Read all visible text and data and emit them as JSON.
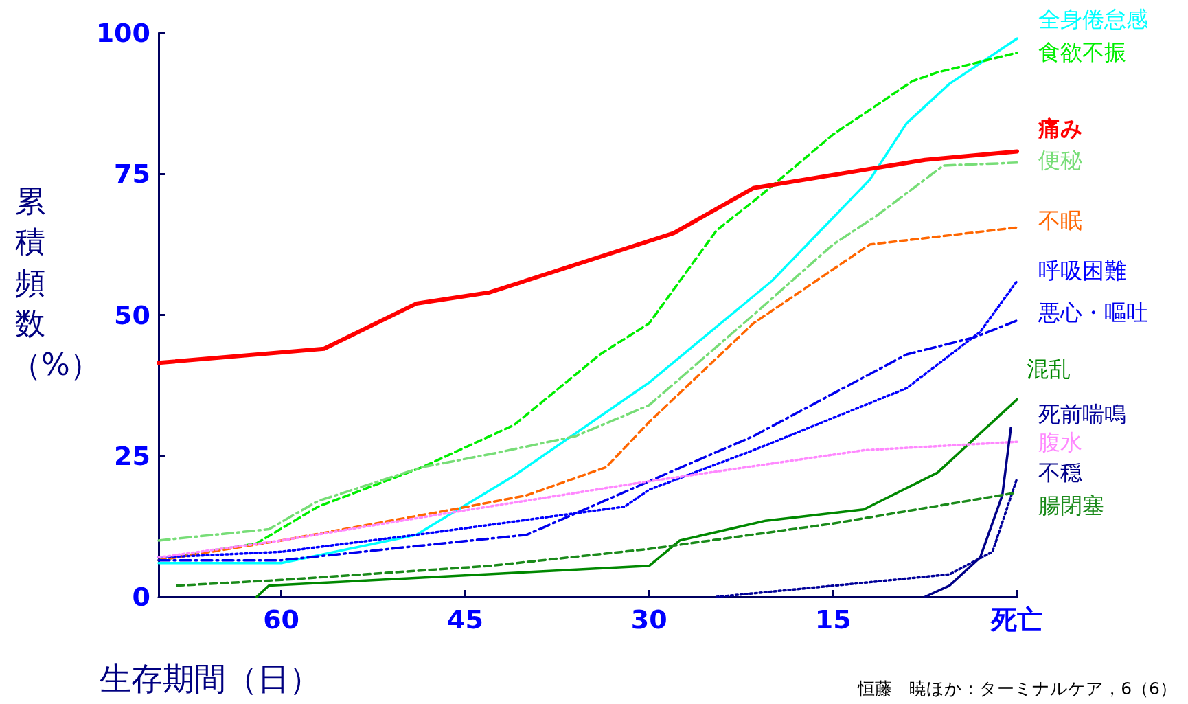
{
  "chart_data": {
    "type": "line",
    "xlabel": "生存期間（日）",
    "ylabel": "累積頻数（%）",
    "annotations": [
      "恒藤　暁ほか：ターミナルケア，6（6）"
    ],
    "xlim": [
      70,
      0
    ],
    "xticks": [
      {
        "value": 0,
        "label": "死亡"
      },
      15,
      30,
      45,
      60
    ],
    "ylim": [
      0,
      100
    ],
    "yticks": [
      0,
      25,
      50,
      75,
      100
    ],
    "grid": false,
    "legend": "right",
    "marker": "none",
    "series": [
      {
        "name": "全身倦怠感",
        "color": "#00ffff",
        "line_style": "solid",
        "x": [
          70,
          60,
          49,
          41,
          30,
          20,
          12,
          9,
          5.5,
          0
        ],
        "values": [
          6,
          6,
          11,
          21.5,
          38,
          56,
          74,
          84,
          91,
          99
        ]
      },
      {
        "name": "食欲不振",
        "color": "#00ee00",
        "line_style": "dashed",
        "x": [
          70,
          62,
          57,
          48.5,
          41,
          34,
          30,
          24.5,
          21,
          15,
          8.5,
          6.5,
          0
        ],
        "values": [
          6.5,
          9.5,
          16,
          23,
          30.5,
          43,
          48.5,
          65,
          71,
          82,
          91.5,
          93,
          96.5
        ]
      },
      {
        "name": "痛み",
        "color": "#ff0000",
        "line_style": "solid",
        "x": [
          70,
          56.5,
          49,
          43,
          28,
          21.5,
          7.5,
          0
        ],
        "values": [
          41.5,
          44,
          52,
          54,
          64.5,
          72.5,
          77.5,
          79
        ]
      },
      {
        "name": "便秘",
        "color": "#77dd77",
        "line_style": "dashdot",
        "x": [
          70,
          61,
          57,
          48.5,
          42.5,
          36,
          30,
          21.5,
          15,
          11.5,
          6,
          0
        ],
        "values": [
          10,
          12,
          17,
          23,
          25.5,
          28.5,
          34,
          50,
          62.5,
          67.5,
          76.5,
          77
        ]
      },
      {
        "name": "不眠",
        "color": "#ff6600",
        "line_style": "dashed",
        "x": [
          70,
          60,
          46,
          40,
          33.5,
          30,
          21.5,
          12,
          0
        ],
        "values": [
          6.5,
          10,
          15.5,
          18,
          23,
          31,
          48.5,
          62.5,
          65.5
        ]
      },
      {
        "name": "呼吸困難",
        "color": "#0000ff",
        "line_style": "dotted",
        "x": [
          70,
          60,
          49,
          32,
          30,
          21.5,
          9,
          3,
          0
        ],
        "values": [
          7,
          8,
          11,
          16,
          19,
          26,
          37,
          47,
          56
        ]
      },
      {
        "name": "悪心・嘔吐",
        "color": "#0000ee",
        "line_style": "dashdot",
        "x": [
          70,
          60,
          49,
          40,
          30,
          21.5,
          9,
          3.5,
          0
        ],
        "values": [
          6.5,
          6.5,
          9,
          11,
          20.5,
          28.5,
          43,
          46,
          49
        ]
      },
      {
        "name": "混乱",
        "color": "#008800",
        "line_style": "solid",
        "x": [
          62,
          61,
          30,
          27.5,
          20.5,
          12.5,
          6.5,
          0
        ],
        "values": [
          0,
          2,
          5.5,
          10,
          13.5,
          15.5,
          22,
          35
        ]
      },
      {
        "name": "死前喘鳴",
        "color": "#000099",
        "line_style": "dotted",
        "x": [
          24.5,
          12.5,
          5.5,
          2,
          0
        ],
        "values": [
          0,
          2.5,
          4,
          8,
          21
        ]
      },
      {
        "name": "腹水",
        "color": "#ff88ff",
        "line_style": "dotted",
        "x": [
          70,
          60,
          46,
          30,
          12.5,
          0
        ],
        "values": [
          7,
          10,
          15,
          20.5,
          26,
          27.5
        ]
      },
      {
        "name": "不穏",
        "color": "#000088",
        "line_style": "solid",
        "x": [
          7.5,
          5.5,
          3,
          1.2,
          0.5
        ],
        "values": [
          0,
          2,
          7,
          18,
          30
        ]
      },
      {
        "name": "腸閉塞",
        "color": "#1a8a1a",
        "line_style": "dashed",
        "x": [
          68.5,
          60,
          43,
          30,
          15,
          0
        ],
        "values": [
          2,
          3,
          5.5,
          8.5,
          13,
          18.5
        ]
      }
    ]
  }
}
